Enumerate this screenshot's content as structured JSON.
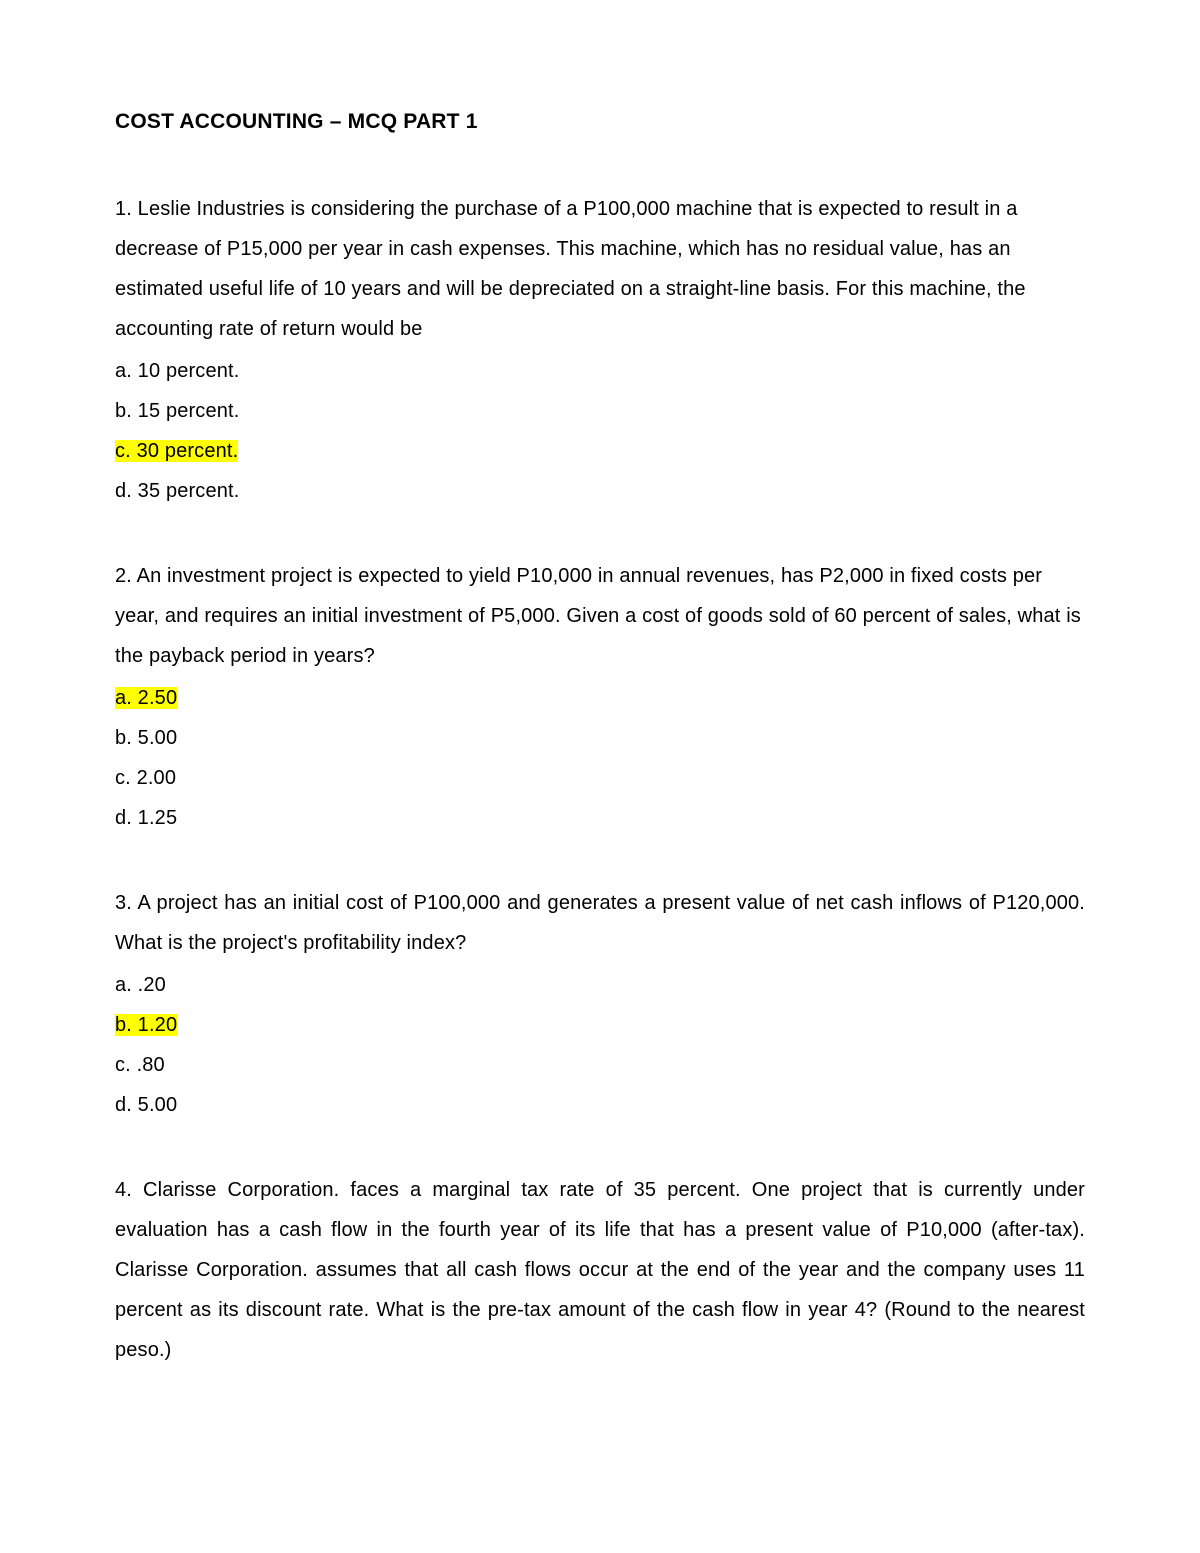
{
  "title": "COST ACCOUNTING – MCQ PART 1",
  "highlight_color": "#ffff00",
  "text_color": "#000000",
  "background_color": "#ffffff",
  "font_family": "Arial",
  "title_fontsize": 21,
  "body_fontsize": 20,
  "line_height": 2.0,
  "questions": [
    {
      "number": "1",
      "text": "1. Leslie Industries is considering the purchase of a P100,000 machine that is expected to result in a decrease of P15,000 per year in cash expenses. This machine, which has no residual value, has an estimated useful life of 10 years and will be depreciated on a straight-line basis. For this machine, the accounting rate of return would be",
      "justify": false,
      "options": [
        {
          "label": "a. 10 percent.",
          "highlighted": false
        },
        {
          "label": "b. 15 percent.",
          "highlighted": false
        },
        {
          "label": "c. 30 percent.",
          "highlighted": true
        },
        {
          "label": "d. 35 percent.",
          "highlighted": false
        }
      ]
    },
    {
      "number": "2",
      "text": "2. An investment project is expected to yield P10,000 in annual revenues, has P2,000 in fixed costs per year, and requires an initial investment of P5,000. Given a cost of goods sold of 60 percent of sales, what is the payback period in years?",
      "justify": false,
      "options": [
        {
          "label": "a. 2.50",
          "highlighted": true
        },
        {
          "label": "b. 5.00",
          "highlighted": false
        },
        {
          "label": "c. 2.00",
          "highlighted": false
        },
        {
          "label": "d. 1.25",
          "highlighted": false
        }
      ]
    },
    {
      "number": "3",
      "text": "3. A project has an initial cost of P100,000 and generates a present value of net cash inflows of P120,000. What is the project's profitability index?",
      "justify": true,
      "options": [
        {
          "label": "a. .20",
          "highlighted": false
        },
        {
          "label": "b. 1.20",
          "highlighted": true
        },
        {
          "label": "c. .80",
          "highlighted": false
        },
        {
          "label": "d. 5.00",
          "highlighted": false
        }
      ]
    },
    {
      "number": "4",
      "text": "4. Clarisse Corporation. faces a marginal tax rate of 35 percent. One project that is currently under evaluation has a cash flow in the fourth year of its life that has a present value of P10,000 (after-tax). Clarisse Corporation. assumes that all cash flows occur at the end of the year and the company uses 11 percent as its discount rate. What is the pre-tax amount of the cash flow in year 4? (Round to the nearest peso.)",
      "justify": true,
      "options": []
    }
  ]
}
